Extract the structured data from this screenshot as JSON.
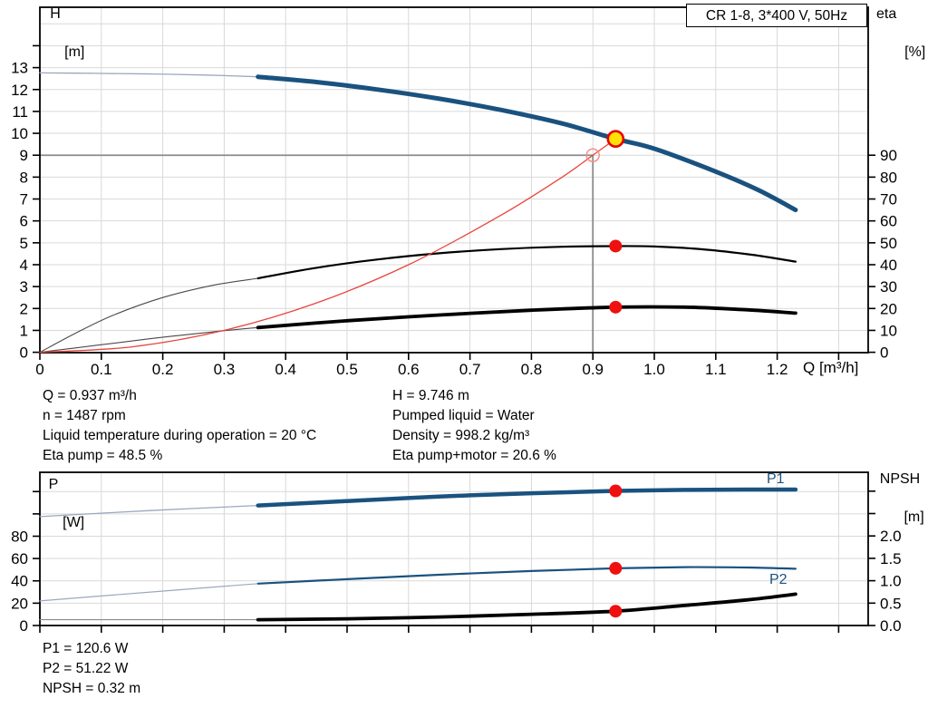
{
  "title_box": "CR 1-8, 3*400 V, 50Hz",
  "labels": {
    "top_left_axis": [
      "H",
      "[m]"
    ],
    "top_right_axis": [
      "eta",
      "[%]"
    ],
    "bottom_left_axis": [
      "P",
      "[W]"
    ],
    "bottom_right_axis": [
      "NPSH",
      "[m]"
    ],
    "x_axis": "Q [m³/h]"
  },
  "curve_labels": {
    "p1": "P1",
    "p2": "P2"
  },
  "info_top_left": [
    "Q = 0.937 m³/h",
    "n = 1487 rpm",
    "Liquid temperature during operation = 20 °C",
    "Eta pump = 48.5 %"
  ],
  "info_top_right": [
    "H = 9.746 m",
    "Pumped liquid = Water",
    "Density = 998.2 kg/m³",
    "Eta pump+motor = 20.6 %"
  ],
  "info_bottom": [
    "P1 = 120.6 W",
    "P2 = 51.22 W",
    "NPSH = 0.32 m"
  ],
  "colors": {
    "curve_blue": "#1a527f",
    "curve_blue_thin": "#9aa8bf",
    "curve_black": "#000000",
    "curve_black_thin": "#4a4a4a",
    "system_red": "#e8453c",
    "npsh_thin_gray": "#8a8a8a",
    "grid": "#d9d9d9",
    "crosshair": "#8c8c8c",
    "marker_red": "#ef1010",
    "marker_yellow_fill": "#ffe10a",
    "marker_yellow_stroke": "#e60000",
    "open_marker_stroke": "#f19087"
  },
  "chart_data": [
    {
      "id": "head-efficiency-chart",
      "type": "line",
      "title": "CR 1-8, 3*400 V, 50Hz",
      "xlabel": "Q [m³/h]",
      "x_axis": {
        "tick_values": [
          0,
          0.1,
          0.2,
          0.3,
          0.4,
          0.5,
          0.6,
          0.7,
          0.8,
          0.9,
          1.0,
          1.1,
          1.2,
          1.3
        ],
        "tick_labels": [
          "0",
          "0.1",
          "0.2",
          "0.3",
          "0.4",
          "0.5",
          "0.6",
          "0.7",
          "0.8",
          "0.9",
          "1.0",
          "1.1",
          "1.2",
          ""
        ]
      },
      "left_axis": {
        "label": "H [m]",
        "range": [
          0,
          15.7
        ],
        "tick_values": [
          0,
          1,
          2,
          3,
          4,
          5,
          6,
          7,
          8,
          9,
          10,
          11,
          12,
          13,
          14
        ],
        "tick_labels": [
          "0",
          "1",
          "2",
          "3",
          "4",
          "5",
          "6",
          "7",
          "8",
          "9",
          "10",
          "11",
          "12",
          "13",
          ""
        ]
      },
      "right_axis": {
        "label": "eta [%]",
        "range": [
          0,
          157
        ],
        "tick_values": [
          0,
          10,
          20,
          30,
          40,
          50,
          60,
          70,
          80,
          90
        ],
        "tick_labels": [
          "0",
          "10",
          "20",
          "30",
          "40",
          "50",
          "60",
          "70",
          "80",
          "90"
        ]
      },
      "crosshair": {
        "q": 0.9,
        "h": 9.0
      },
      "series": [
        {
          "name": "pump-curve-extension",
          "axis": "left",
          "color": "#9aa8bf",
          "width": 1.3,
          "x": [
            0,
            0.09,
            0.18,
            0.27,
            0.355
          ],
          "y": [
            12.76,
            12.74,
            12.71,
            12.66,
            12.58
          ]
        },
        {
          "name": "pump-curve",
          "axis": "left",
          "color": "#1a527f",
          "width": 5,
          "x": [
            0.355,
            0.45,
            0.55,
            0.65,
            0.75,
            0.85,
            0.937,
            1.0,
            1.1,
            1.17,
            1.23
          ],
          "y": [
            12.58,
            12.34,
            12.0,
            11.58,
            11.07,
            10.45,
            9.746,
            9.3,
            8.25,
            7.4,
            6.5
          ]
        },
        {
          "name": "eta-curve-extension",
          "axis": "right",
          "color": "#4a4a4a",
          "width": 1.1,
          "x": [
            0,
            0.06,
            0.12,
            0.2,
            0.28,
            0.355
          ],
          "y": [
            0,
            9,
            17,
            25,
            30.5,
            33.8
          ]
        },
        {
          "name": "eta-curve",
          "axis": "right",
          "color": "#000000",
          "width": 2.2,
          "x": [
            0.355,
            0.45,
            0.55,
            0.65,
            0.75,
            0.85,
            0.937,
            1.0,
            1.08,
            1.16,
            1.23
          ],
          "y": [
            33.8,
            38.6,
            42.4,
            45.2,
            47.1,
            48.2,
            48.5,
            48.3,
            47.0,
            44.5,
            41.4
          ]
        },
        {
          "name": "eta-pump-motor-extension",
          "axis": "right",
          "color": "#4a4a4a",
          "width": 1.1,
          "x": [
            0,
            0.09,
            0.18,
            0.27,
            0.355
          ],
          "y": [
            0,
            3.1,
            6.2,
            9.0,
            11.3
          ]
        },
        {
          "name": "eta-pump-motor-curve",
          "axis": "right",
          "color": "#000000",
          "width": 3.8,
          "x": [
            0.355,
            0.5,
            0.65,
            0.8,
            0.937,
            1.05,
            1.15,
            1.23
          ],
          "y": [
            11.3,
            14.4,
            17.0,
            19.2,
            20.6,
            20.6,
            19.4,
            17.9
          ]
        },
        {
          "name": "system-curve",
          "axis": "left",
          "color": "#e8453c",
          "width": 1.3,
          "x": [
            0,
            0.15,
            0.3,
            0.45,
            0.6,
            0.75,
            0.85,
            0.9,
            0.937
          ],
          "y": [
            0,
            0.25,
            1.0,
            2.25,
            4.0,
            6.25,
            8.0,
            9.0,
            9.746
          ]
        }
      ],
      "markers": [
        {
          "name": "requested-duty-point",
          "q": 0.9,
          "value": 9.0,
          "axis": "left",
          "style": "open-red"
        },
        {
          "name": "duty-point",
          "q": 0.937,
          "value": 9.746,
          "axis": "left",
          "style": "yellow"
        },
        {
          "name": "eta-pump-point",
          "q": 0.937,
          "value": 48.5,
          "axis": "right",
          "style": "red"
        },
        {
          "name": "eta-pump-motor-point",
          "q": 0.937,
          "value": 20.6,
          "axis": "right",
          "style": "red"
        }
      ]
    },
    {
      "id": "power-npsh-chart",
      "type": "line",
      "title": "",
      "xlabel": "",
      "x_axis": {
        "tick_values": [
          0,
          0.1,
          0.2,
          0.3,
          0.4,
          0.5,
          0.6,
          0.7,
          0.8,
          0.9,
          1.0,
          1.1,
          1.2,
          1.3
        ],
        "tick_labels": [
          "",
          "",
          "",
          "",
          "",
          "",
          "",
          "",
          "",
          "",
          "",
          "",
          "",
          ""
        ]
      },
      "left_axis": {
        "label": "P [W]",
        "range": [
          0,
          137
        ],
        "tick_values": [
          0,
          20,
          40,
          60,
          80,
          100,
          120
        ],
        "tick_labels": [
          "0",
          "20",
          "40",
          "60",
          "80",
          "",
          ""
        ]
      },
      "right_axis": {
        "label": "NPSH [m]",
        "range": [
          0,
          3.42
        ],
        "tick_values": [
          0,
          0.5,
          1.0,
          1.5,
          2.0,
          2.5,
          3.0
        ],
        "tick_labels": [
          "0.0",
          "0.5",
          "1.0",
          "1.5",
          "2.0",
          "",
          ""
        ]
      },
      "series": [
        {
          "name": "p1-curve-extension",
          "axis": "left",
          "color": "#9aa8bf",
          "width": 1.3,
          "x": [
            0,
            0.18,
            0.355
          ],
          "y": [
            97.5,
            103,
            107.5
          ]
        },
        {
          "name": "p1-curve",
          "axis": "left",
          "color": "#1a527f",
          "width": 4.5,
          "x": [
            0.355,
            0.5,
            0.65,
            0.8,
            0.937,
            1.05,
            1.15,
            1.23
          ],
          "y": [
            107.5,
            111.5,
            115.5,
            118.5,
            120.6,
            121.5,
            121.8,
            121.8
          ]
        },
        {
          "name": "p2-curve-extension",
          "axis": "left",
          "color": "#9aa8bf",
          "width": 1.2,
          "x": [
            0,
            0.18,
            0.355
          ],
          "y": [
            22,
            30,
            37.5
          ]
        },
        {
          "name": "p2-curve",
          "axis": "left",
          "color": "#1a527f",
          "width": 2.2,
          "x": [
            0.355,
            0.5,
            0.65,
            0.8,
            0.937,
            1.05,
            1.15,
            1.23
          ],
          "y": [
            37.5,
            41.5,
            45.5,
            48.8,
            51.22,
            52.3,
            52.0,
            50.8
          ]
        },
        {
          "name": "npsh-curve-extension",
          "axis": "right",
          "color": "#8a8a8a",
          "width": 1.1,
          "x": [
            0,
            0.355
          ],
          "y": [
            0.13,
            0.13
          ]
        },
        {
          "name": "npsh-curve",
          "axis": "right",
          "color": "#000000",
          "width": 3.8,
          "x": [
            0.355,
            0.5,
            0.65,
            0.8,
            0.937,
            1.05,
            1.15,
            1.23
          ],
          "y": [
            0.13,
            0.15,
            0.19,
            0.25,
            0.32,
            0.45,
            0.57,
            0.7
          ]
        }
      ],
      "markers": [
        {
          "name": "p1-point",
          "q": 0.937,
          "value": 120.6,
          "axis": "left",
          "style": "red"
        },
        {
          "name": "p2-point",
          "q": 0.937,
          "value": 51.22,
          "axis": "left",
          "style": "red"
        },
        {
          "name": "npsh-point",
          "q": 0.937,
          "value": 0.32,
          "axis": "right",
          "style": "red"
        }
      ]
    }
  ]
}
